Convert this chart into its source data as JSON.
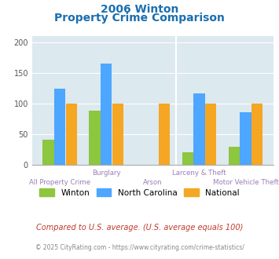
{
  "title_line1": "2006 Winton",
  "title_line2": "Property Crime Comparison",
  "categories": [
    "All Property Crime",
    "Burglary",
    "Arson",
    "Larceny & Theft",
    "Motor Vehicle Theft"
  ],
  "winton": [
    40,
    88,
    0,
    20,
    29
  ],
  "north_carolina": [
    124,
    165,
    0,
    117,
    85
  ],
  "national": [
    100,
    100,
    100,
    100,
    100
  ],
  "color_winton": "#8dc63f",
  "color_nc": "#4da6ff",
  "color_national": "#f5a623",
  "bg_color": "#dce9ef",
  "ylim": [
    0,
    210
  ],
  "yticks": [
    0,
    50,
    100,
    150,
    200
  ],
  "xlabel_color": "#9b7eb8",
  "title_color": "#1a6faf",
  "legend_labels": [
    "Winton",
    "North Carolina",
    "National"
  ],
  "footnote1": "Compared to U.S. average. (U.S. average equals 100)",
  "footnote2": "© 2025 CityRating.com - https://www.cityrating.com/crime-statistics/",
  "footnote1_color": "#c0392b",
  "footnote2_color": "#888888",
  "footnote2_link_color": "#4da6ff"
}
